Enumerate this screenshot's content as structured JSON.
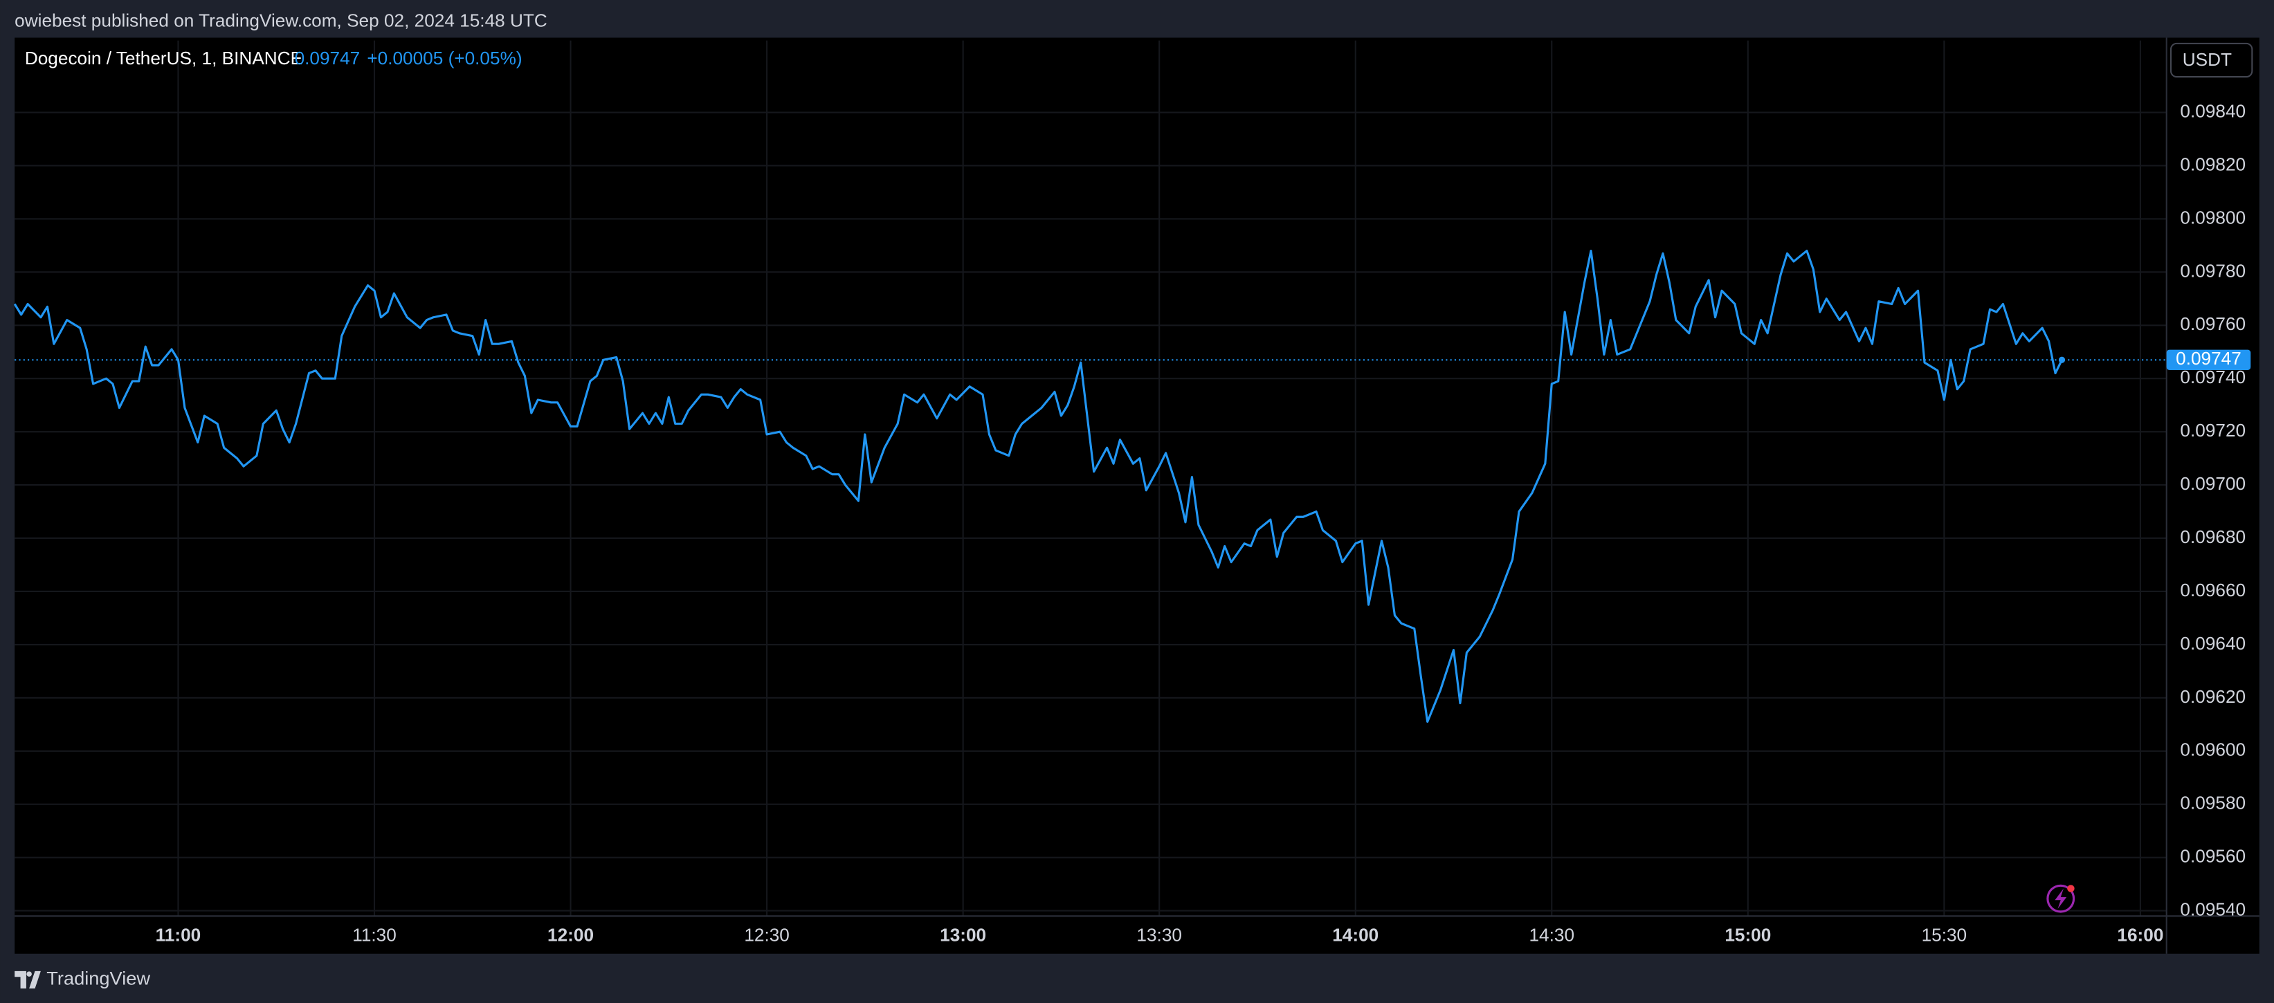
{
  "header": {
    "publisher": "owiebest published on TradingView.com, Sep 02, 2024 15:48 UTC"
  },
  "chart_data": {
    "type": "line",
    "title": "Dogecoin / TetherUS, 1, BINANCE",
    "last_price": 0.09747,
    "change": "+0.00005 (+0.05%)",
    "currency": "USDT",
    "color": "#2196f3",
    "grid": true,
    "x": [
      "10:35",
      "10:36",
      "10:37",
      "10:39",
      "10:40",
      "10:41",
      "10:43",
      "10:45",
      "10:46",
      "10:47",
      "10:49",
      "10:50",
      "10:51",
      "10:53",
      "10:54",
      "10:55",
      "10:56",
      "10:57",
      "10:59",
      "11:00",
      "11:01",
      "11:03",
      "11:04",
      "11:06",
      "11:07",
      "11:09",
      "11:10",
      "11:12",
      "11:13",
      "11:15",
      "11:16",
      "11:17",
      "11:18",
      "11:20",
      "11:21",
      "11:22",
      "11:24",
      "11:25",
      "11:27",
      "11:29",
      "11:30",
      "11:31",
      "11:32",
      "11:33",
      "11:35",
      "11:36",
      "11:37",
      "11:38",
      "11:39",
      "11:41",
      "11:42",
      "11:43",
      "11:45",
      "11:46",
      "11:47",
      "11:48",
      "11:49",
      "11:51",
      "11:52",
      "11:53",
      "11:54",
      "11:55",
      "11:57",
      "11:58",
      "12:00",
      "12:01",
      "12:03",
      "12:04",
      "12:05",
      "12:07",
      "12:08",
      "12:09",
      "12:11",
      "12:12",
      "12:13",
      "12:14",
      "12:15",
      "12:16",
      "12:17",
      "12:18",
      "12:20",
      "12:21",
      "12:23",
      "12:24",
      "12:25",
      "12:26",
      "12:27",
      "12:29",
      "12:30",
      "12:32",
      "12:33",
      "12:34",
      "12:36",
      "12:37",
      "12:38",
      "12:40",
      "12:41",
      "12:42",
      "12:44",
      "12:45",
      "12:46",
      "12:48",
      "12:50",
      "12:51",
      "12:53",
      "12:54",
      "12:56",
      "12:58",
      "12:59",
      "13:01",
      "13:03",
      "13:04",
      "13:05",
      "13:07",
      "13:08",
      "13:09",
      "13:11",
      "13:12",
      "13:14",
      "13:15",
      "13:16",
      "13:17",
      "13:18",
      "13:20",
      "13:22",
      "13:23",
      "13:24",
      "13:26",
      "13:27",
      "13:28",
      "13:30",
      "13:31",
      "13:33",
      "13:34",
      "13:35",
      "13:36",
      "13:38",
      "13:39",
      "13:40",
      "13:41",
      "13:43",
      "13:44",
      "13:45",
      "13:47",
      "13:48",
      "13:49",
      "13:51",
      "13:52",
      "13:54",
      "13:55",
      "13:57",
      "13:58",
      "14:00",
      "14:01",
      "14:02",
      "14:04",
      "14:05",
      "14:06",
      "14:07",
      "14:09",
      "14:10",
      "14:11",
      "14:13",
      "14:15",
      "14:16",
      "14:17",
      "14:19",
      "14:21",
      "14:22",
      "14:24",
      "14:25",
      "14:27",
      "14:29",
      "14:30",
      "14:31",
      "14:32",
      "14:33",
      "14:35",
      "14:36",
      "14:37",
      "14:38",
      "14:39",
      "14:40",
      "14:42",
      "14:43",
      "14:45",
      "14:46",
      "14:47",
      "14:48",
      "14:49",
      "14:51",
      "14:52",
      "14:54",
      "14:55",
      "14:56",
      "14:58",
      "14:59",
      "15:01",
      "15:02",
      "15:03",
      "15:05",
      "15:06",
      "15:07",
      "15:09",
      "15:10",
      "15:11",
      "15:12",
      "15:14",
      "15:15",
      "15:17",
      "15:18",
      "15:19",
      "15:20",
      "15:22",
      "15:23",
      "15:24",
      "15:26",
      "15:27",
      "15:29",
      "15:30",
      "15:31",
      "15:32",
      "15:33",
      "15:34",
      "15:36",
      "15:37",
      "15:38",
      "15:39",
      "15:41",
      "15:42",
      "15:43",
      "15:45",
      "15:46",
      "15:47",
      "15:48"
    ],
    "values": [
      0.09768,
      0.09764,
      0.09768,
      0.09763,
      0.09767,
      0.09753,
      0.09762,
      0.09759,
      0.09751,
      0.09738,
      0.0974,
      0.09738,
      0.09729,
      0.09739,
      0.09739,
      0.09752,
      0.09745,
      0.09745,
      0.09751,
      0.09747,
      0.09729,
      0.09716,
      0.09726,
      0.09723,
      0.09714,
      0.0971,
      0.09707,
      0.09711,
      0.09723,
      0.09728,
      0.09721,
      0.09716,
      0.09723,
      0.09742,
      0.09743,
      0.0974,
      0.0974,
      0.09756,
      0.09767,
      0.09775,
      0.09773,
      0.09763,
      0.09765,
      0.09772,
      0.09763,
      0.09761,
      0.09759,
      0.09762,
      0.09763,
      0.09764,
      0.09758,
      0.09757,
      0.09756,
      0.09749,
      0.09762,
      0.09753,
      0.09753,
      0.09754,
      0.09746,
      0.09741,
      0.09727,
      0.09732,
      0.09731,
      0.09731,
      0.09722,
      0.09722,
      0.09739,
      0.09741,
      0.09747,
      0.09748,
      0.09739,
      0.09721,
      0.09727,
      0.09723,
      0.09727,
      0.09723,
      0.09733,
      0.09723,
      0.09723,
      0.09728,
      0.09734,
      0.09734,
      0.09733,
      0.09729,
      0.09733,
      0.09736,
      0.09734,
      0.09732,
      0.09719,
      0.0972,
      0.09716,
      0.09714,
      0.09711,
      0.09706,
      0.09707,
      0.09704,
      0.09704,
      0.097,
      0.09694,
      0.09719,
      0.09701,
      0.09714,
      0.09723,
      0.09734,
      0.09731,
      0.09734,
      0.09725,
      0.09734,
      0.09732,
      0.09737,
      0.09734,
      0.09719,
      0.09713,
      0.09711,
      0.09719,
      0.09723,
      0.09727,
      0.09729,
      0.09735,
      0.09726,
      0.0973,
      0.09737,
      0.09746,
      0.09705,
      0.09714,
      0.09708,
      0.09717,
      0.09708,
      0.0971,
      0.09698,
      0.09707,
      0.09712,
      0.09697,
      0.09686,
      0.09703,
      0.09685,
      0.09675,
      0.09669,
      0.09677,
      0.09671,
      0.09678,
      0.09677,
      0.09683,
      0.09687,
      0.09673,
      0.09682,
      0.09688,
      0.09688,
      0.0969,
      0.09683,
      0.09679,
      0.09671,
      0.09678,
      0.09679,
      0.09655,
      0.09679,
      0.09669,
      0.09651,
      0.09648,
      0.09646,
      0.09628,
      0.09611,
      0.09623,
      0.09638,
      0.09618,
      0.09637,
      0.09643,
      0.09653,
      0.09659,
      0.09672,
      0.0969,
      0.09697,
      0.09708,
      0.09738,
      0.09739,
      0.09765,
      0.09749,
      0.09776,
      0.09788,
      0.0977,
      0.09749,
      0.09762,
      0.09749,
      0.09751,
      0.09757,
      0.09769,
      0.09779,
      0.09787,
      0.09776,
      0.09762,
      0.09757,
      0.09767,
      0.09777,
      0.09763,
      0.09773,
      0.09768,
      0.09757,
      0.09753,
      0.09762,
      0.09757,
      0.09779,
      0.09787,
      0.09784,
      0.09788,
      0.09781,
      0.09765,
      0.0977,
      0.09762,
      0.09765,
      0.09754,
      0.09759,
      0.09753,
      0.09769,
      0.09768,
      0.09774,
      0.09768,
      0.09773,
      0.09746,
      0.09743,
      0.09732,
      0.09747,
      0.09736,
      0.09739,
      0.09751,
      0.09753,
      0.09766,
      0.09765,
      0.09768,
      0.09753,
      0.09757,
      0.09754,
      0.09759,
      0.09754,
      0.09742,
      0.09747
    ],
    "xlim": [
      "10:35",
      "16:04"
    ],
    "xticks": [
      "11:00",
      "11:30",
      "12:00",
      "12:30",
      "13:00",
      "13:30",
      "14:00",
      "14:30",
      "15:00",
      "15:30",
      "16:00"
    ],
    "ylim": [
      0.09538,
      0.09867
    ],
    "yticks": [
      {
        "value": 0.0954,
        "label": "0.09540"
      },
      {
        "value": 0.0956,
        "label": "0.09560"
      },
      {
        "value": 0.0958,
        "label": "0.09580"
      },
      {
        "value": 0.096,
        "label": "0.09600"
      },
      {
        "value": 0.0962,
        "label": "0.09620"
      },
      {
        "value": 0.0964,
        "label": "0.09640"
      },
      {
        "value": 0.0966,
        "label": "0.09660"
      },
      {
        "value": 0.0968,
        "label": "0.09680"
      },
      {
        "value": 0.097,
        "label": "0.09700"
      },
      {
        "value": 0.0972,
        "label": "0.09720"
      },
      {
        "value": 0.0974,
        "label": "0.09740"
      },
      {
        "value": 0.0976,
        "label": "0.09760"
      },
      {
        "value": 0.0978,
        "label": "0.09780"
      },
      {
        "value": 0.098,
        "label": "0.09800"
      },
      {
        "value": 0.0982,
        "label": "0.09820"
      },
      {
        "value": 0.0984,
        "label": "0.09840"
      }
    ]
  },
  "footer": {
    "brand": "TradingView"
  }
}
